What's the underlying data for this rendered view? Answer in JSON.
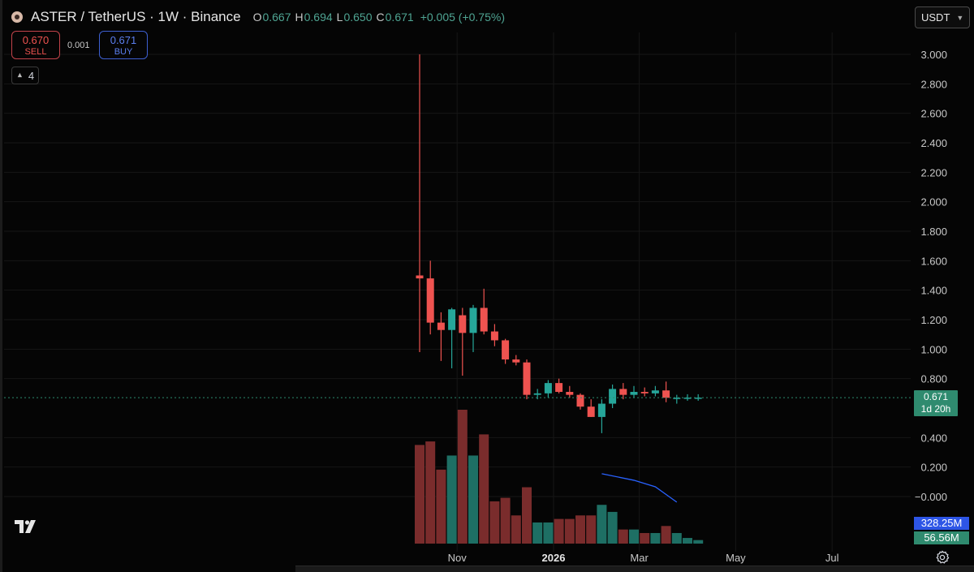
{
  "header": {
    "title": "ASTER / TetherUS · 1W · Binance",
    "open_label": "O",
    "open": "0.667",
    "high_label": "H",
    "high": "0.694",
    "low_label": "L",
    "low": "0.650",
    "close_label": "C",
    "close": "0.671",
    "change": "+0.005 (+0.75%)"
  },
  "currency": "USDT",
  "trade": {
    "sell_price": "0.670",
    "sell_label": "SELL",
    "spread": "0.001",
    "buy_price": "0.671",
    "buy_label": "BUY"
  },
  "indicators_count": "4",
  "price_tag": {
    "price": "0.671",
    "countdown": "1d 20h"
  },
  "volume_tags": {
    "ma": "328.25M",
    "volume": "56.56M"
  },
  "colors": {
    "up": "#26a69a",
    "down": "#ef5350",
    "volume_up": "#1e6f64",
    "volume_down": "#7a2c2c",
    "volume_ma": "#2962ff",
    "background": "#050505"
  },
  "chart_data": {
    "type": "candlestick",
    "y_axis_ticks": [
      "3.000",
      "2.800",
      "2.600",
      "2.400",
      "2.200",
      "2.000",
      "1.800",
      "1.600",
      "1.400",
      "1.200",
      "1.000",
      "0.800",
      "0.400",
      "0.200",
      "−0.000"
    ],
    "x_axis_labels": [
      {
        "label": "Nov",
        "bold": false,
        "week": 3.5
      },
      {
        "label": "2026",
        "bold": true,
        "week": 12.5
      },
      {
        "label": "Mar",
        "bold": false,
        "week": 20.5
      },
      {
        "label": "May",
        "bold": false,
        "week": 29.5
      },
      {
        "label": "Jul",
        "bold": false,
        "week": 38.5
      }
    ],
    "ylim": [
      -0.05,
      3.05
    ],
    "candles": [
      {
        "o": 1.5,
        "h": 3.0,
        "l": 0.98,
        "c": 1.48,
        "v": 0.28
      },
      {
        "o": 1.48,
        "h": 1.6,
        "l": 1.1,
        "c": 1.18,
        "v": 0.29
      },
      {
        "o": 1.18,
        "h": 1.25,
        "l": 0.92,
        "c": 1.13,
        "v": 0.21
      },
      {
        "o": 1.13,
        "h": 1.28,
        "l": 0.87,
        "c": 1.27,
        "v": 0.25
      },
      {
        "o": 1.23,
        "h": 1.28,
        "l": 0.82,
        "c": 1.11,
        "v": 0.38
      },
      {
        "o": 1.11,
        "h": 1.3,
        "l": 0.98,
        "c": 1.28,
        "v": 0.25
      },
      {
        "o": 1.28,
        "h": 1.41,
        "l": 1.1,
        "c": 1.12,
        "v": 0.31
      },
      {
        "o": 1.12,
        "h": 1.17,
        "l": 1.02,
        "c": 1.06,
        "v": 0.12
      },
      {
        "o": 1.06,
        "h": 1.07,
        "l": 0.9,
        "c": 0.93,
        "v": 0.13
      },
      {
        "o": 0.93,
        "h": 0.96,
        "l": 0.89,
        "c": 0.91,
        "v": 0.08
      },
      {
        "o": 0.91,
        "h": 0.93,
        "l": 0.66,
        "c": 0.69,
        "v": 0.16
      },
      {
        "o": 0.69,
        "h": 0.73,
        "l": 0.66,
        "c": 0.7,
        "v": 0.06
      },
      {
        "o": 0.7,
        "h": 0.79,
        "l": 0.67,
        "c": 0.77,
        "v": 0.06
      },
      {
        "o": 0.77,
        "h": 0.8,
        "l": 0.7,
        "c": 0.71,
        "v": 0.07
      },
      {
        "o": 0.71,
        "h": 0.75,
        "l": 0.67,
        "c": 0.69,
        "v": 0.07
      },
      {
        "o": 0.69,
        "h": 0.7,
        "l": 0.59,
        "c": 0.61,
        "v": 0.08
      },
      {
        "o": 0.61,
        "h": 0.66,
        "l": 0.54,
        "c": 0.54,
        "v": 0.08
      },
      {
        "o": 0.54,
        "h": 0.66,
        "l": 0.43,
        "c": 0.63,
        "v": 0.11
      },
      {
        "o": 0.63,
        "h": 0.76,
        "l": 0.6,
        "c": 0.73,
        "v": 0.09
      },
      {
        "o": 0.73,
        "h": 0.77,
        "l": 0.66,
        "c": 0.69,
        "v": 0.04
      },
      {
        "o": 0.69,
        "h": 0.75,
        "l": 0.67,
        "c": 0.71,
        "v": 0.04
      },
      {
        "o": 0.71,
        "h": 0.74,
        "l": 0.68,
        "c": 0.7,
        "v": 0.03
      },
      {
        "o": 0.7,
        "h": 0.75,
        "l": 0.68,
        "c": 0.72,
        "v": 0.03
      },
      {
        "o": 0.72,
        "h": 0.78,
        "l": 0.64,
        "c": 0.67,
        "v": 0.05
      },
      {
        "o": 0.67,
        "h": 0.69,
        "l": 0.63,
        "c": 0.67,
        "v": 0.03
      },
      {
        "o": 0.666,
        "h": 0.694,
        "l": 0.65,
        "c": 0.671,
        "v": 0.016
      },
      {
        "o": 0.667,
        "h": 0.694,
        "l": 0.65,
        "c": 0.671,
        "v": 0.01
      }
    ],
    "volume_ma": [
      [
        17,
        0.32
      ],
      [
        20,
        0.29
      ],
      [
        22,
        0.26
      ],
      [
        24,
        0.19
      ]
    ],
    "current_price": 0.671
  }
}
